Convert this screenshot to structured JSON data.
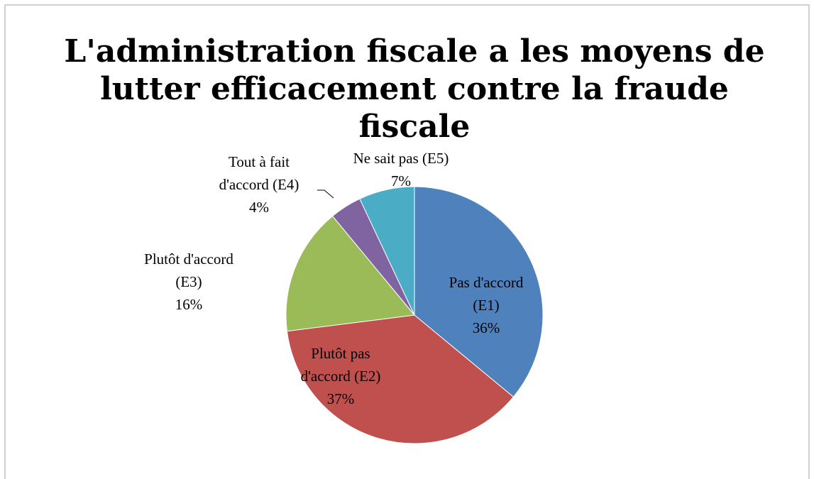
{
  "chart_data": {
    "type": "pie",
    "title": "L'administration fiscale a les moyens de lutter efficacement contre la fraude fiscale",
    "categories": [
      "Pas d'accord (E1)",
      "Plutôt pas d'accord (E2)",
      "Plutôt d'accord (E3)",
      "Tout à fait d'accord (E4)",
      "Ne sait pas (E5)"
    ],
    "values": [
      36,
      37,
      16,
      4,
      7
    ],
    "value_labels": [
      "36%",
      "37%",
      "16%",
      "4%",
      "7%"
    ],
    "colors": [
      "#4f81bd",
      "#c0504d",
      "#9bbb59",
      "#8064a2",
      "#4bacc6"
    ]
  }
}
